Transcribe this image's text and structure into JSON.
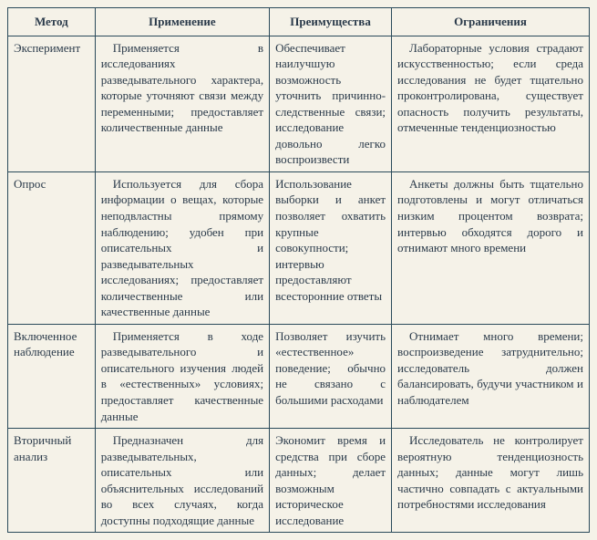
{
  "table": {
    "columns": [
      "Метод",
      "Применение",
      "Преимущества",
      "Ограничения"
    ],
    "rows": [
      {
        "method": "Эксперимент",
        "application": "Применяется в исследованиях разведывательного характера, которые уточняют связи между переменными; предоставляет количественные данные",
        "advantages": "Обеспечивает наилучшую возможность уточнить причинно-следственные связи; исследование довольно легко воспроизвести",
        "limitations": "Лабораторные условия страдают искусственностью; если среда исследования не будет тщательно проконтролирована, существует опасность получить результаты, отмеченные тенденциозностью"
      },
      {
        "method": "Опрос",
        "application": "Используется для сбора информации о вещах, которые неподвластны прямому наблюдению; удобен при описательных и разведывательных исследованиях; предоставляет количественные или качественные данные",
        "advantages": "Использование выборки и анкет позволяет охватить крупные совокупности; интервью предоставляют всесторонние ответы",
        "limitations": "Анкеты должны быть тщательно подготовлены и могут отличаться низким процентом возврата; интервью обходятся дорого и отнимают много времени"
      },
      {
        "method": "Включенное наблюдение",
        "application": "Применяется в ходе разведывательного и описательного изучения людей в «естественных» условиях; предоставляет качественные данные",
        "advantages": "Позволяет изучить «естественное» поведение; обычно не связано с большими расходами",
        "limitations": "Отнимает много времени; воспроизведение затруднительно; исследователь должен балансировать, будучи участником и наблюдателем"
      },
      {
        "method": "Вторичный анализ",
        "application": "Предназначен для разведывательных, описательных или объяснительных исследований во всех случаях, когда доступны подходящие данные",
        "advantages": "Экономит время и средства при сборе данных; делает возможным историческое исследование",
        "limitations": "Исследователь не контролирует вероятную тенденциозность данных; данные могут лишь частично совпадать с актуальными потребностями исследования"
      }
    ],
    "styling": {
      "border_color": "#2a4a5a",
      "background_color": "#f5f2e8",
      "text_color": "#2a3a4a",
      "font_family": "Times New Roman",
      "header_fontsize": 13,
      "cell_fontsize": 13,
      "column_widths_pct": [
        15,
        30,
        21,
        34
      ],
      "line_height": 1.35,
      "header_align": "center",
      "cell_align": "justify"
    }
  }
}
